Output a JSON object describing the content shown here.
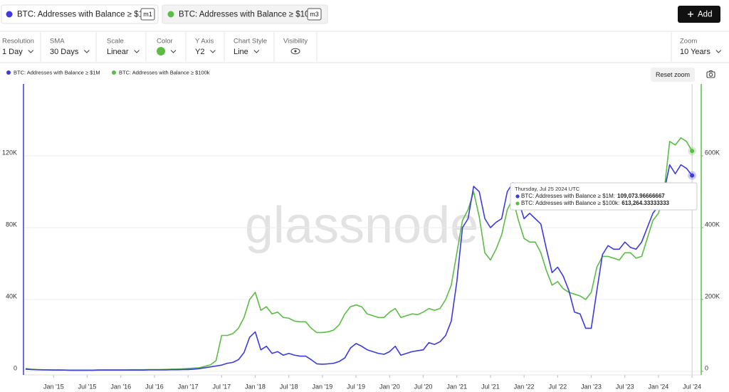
{
  "header": {
    "badges": [
      "m1",
      "m3"
    ],
    "add_button": "Add"
  },
  "toolbar": {
    "items": [
      {
        "label": "Resolution",
        "value": "1 Day"
      },
      {
        "label": "SMA",
        "value": "30 Days"
      },
      {
        "label": "Scale",
        "value": "Linear"
      },
      {
        "label": "Color"
      },
      {
        "label": "Y Axis",
        "value": "Y2"
      },
      {
        "label": "Chart Style",
        "value": "Line"
      },
      {
        "label": "Visibility"
      }
    ],
    "zoom": {
      "label": "Zoom",
      "value": "10 Years"
    }
  },
  "reset_zoom": "Reset zoom",
  "chart_data": {
    "type": "line",
    "watermark": "glassnode",
    "x": [
      "2014-08",
      "2014-09",
      "2014-10",
      "2014-11",
      "2014-12",
      "2015-01",
      "2015-02",
      "2015-03",
      "2015-04",
      "2015-05",
      "2015-06",
      "2015-07",
      "2015-08",
      "2015-09",
      "2015-10",
      "2015-11",
      "2015-12",
      "2016-01",
      "2016-02",
      "2016-03",
      "2016-04",
      "2016-05",
      "2016-06",
      "2016-07",
      "2016-08",
      "2016-09",
      "2016-10",
      "2016-11",
      "2016-12",
      "2017-01",
      "2017-02",
      "2017-03",
      "2017-04",
      "2017-05",
      "2017-06",
      "2017-07",
      "2017-08",
      "2017-09",
      "2017-10",
      "2017-11",
      "2017-12",
      "2018-01",
      "2018-02",
      "2018-03",
      "2018-04",
      "2018-05",
      "2018-06",
      "2018-07",
      "2018-08",
      "2018-09",
      "2018-10",
      "2018-11",
      "2018-12",
      "2019-01",
      "2019-02",
      "2019-03",
      "2019-04",
      "2019-05",
      "2019-06",
      "2019-07",
      "2019-08",
      "2019-09",
      "2019-10",
      "2019-11",
      "2019-12",
      "2020-01",
      "2020-02",
      "2020-03",
      "2020-04",
      "2020-05",
      "2020-06",
      "2020-07",
      "2020-08",
      "2020-09",
      "2020-10",
      "2020-11",
      "2020-12",
      "2021-01",
      "2021-02",
      "2021-03",
      "2021-04",
      "2021-05",
      "2021-06",
      "2021-07",
      "2021-08",
      "2021-09",
      "2021-10",
      "2021-11",
      "2021-12",
      "2022-01",
      "2022-02",
      "2022-03",
      "2022-04",
      "2022-05",
      "2022-06",
      "2022-07",
      "2022-08",
      "2022-09",
      "2022-10",
      "2022-11",
      "2022-12",
      "2023-01",
      "2023-02",
      "2023-03",
      "2023-04",
      "2023-05",
      "2023-06",
      "2023-07",
      "2023-08",
      "2023-09",
      "2023-10",
      "2023-11",
      "2023-12",
      "2024-01",
      "2024-02",
      "2024-03",
      "2024-04",
      "2024-05",
      "2024-06",
      "2024-07"
    ],
    "series": [
      {
        "name": "BTC: Addresses with Balance ≥ $1M",
        "color": "#3b3be0",
        "axis": "y",
        "values": [
          1200,
          1000,
          900,
          800,
          800,
          700,
          700,
          700,
          600,
          600,
          600,
          600,
          600,
          700,
          700,
          700,
          700,
          700,
          700,
          700,
          700,
          700,
          800,
          800,
          800,
          800,
          900,
          900,
          1000,
          1000,
          1200,
          1500,
          2000,
          2500,
          3000,
          3500,
          4500,
          5000,
          6500,
          10500,
          19000,
          22000,
          12000,
          14000,
          10000,
          11000,
          9000,
          10000,
          9000,
          8500,
          8500,
          6500,
          4200,
          4000,
          4200,
          4500,
          5500,
          7500,
          13000,
          15500,
          14000,
          12000,
          11000,
          10000,
          9500,
          11000,
          14000,
          9000,
          10000,
          11000,
          11500,
          12000,
          16000,
          15000,
          16500,
          20000,
          28000,
          50000,
          80000,
          85000,
          103000,
          100000,
          85000,
          80000,
          83000,
          85000,
          100000,
          105000,
          95000,
          85000,
          88000,
          85000,
          82000,
          68000,
          55000,
          58000,
          53000,
          45000,
          33000,
          32000,
          24000,
          24000,
          45000,
          65000,
          70000,
          68000,
          68000,
          72000,
          69000,
          68000,
          72000,
          80000,
          88000,
          92000,
          100000,
          115000,
          110000,
          115000,
          113000,
          109073.96666667
        ]
      },
      {
        "name": "BTC: Addresses with Balance ≥ $100k",
        "color": "#5bbd45",
        "axis": "y2",
        "values": [
          8000,
          6000,
          5000,
          4500,
          4000,
          4000,
          4000,
          3500,
          3500,
          3500,
          3500,
          3500,
          3500,
          4000,
          4000,
          4000,
          4000,
          4000,
          4000,
          4500,
          4500,
          4500,
          5000,
          5000,
          5000,
          5500,
          6000,
          6500,
          7000,
          8000,
          9000,
          10000,
          14000,
          18000,
          30000,
          100000,
          100000,
          105000,
          120000,
          150000,
          200000,
          220000,
          170000,
          180000,
          160000,
          165000,
          150000,
          148000,
          140000,
          138000,
          138000,
          120000,
          108000,
          108000,
          110000,
          115000,
          130000,
          160000,
          180000,
          185000,
          180000,
          160000,
          155000,
          150000,
          150000,
          165000,
          175000,
          150000,
          155000,
          160000,
          158000,
          165000,
          175000,
          170000,
          175000,
          200000,
          240000,
          330000,
          420000,
          450000,
          500000,
          430000,
          330000,
          310000,
          340000,
          380000,
          450000,
          480000,
          420000,
          370000,
          360000,
          360000,
          330000,
          280000,
          240000,
          250000,
          230000,
          220000,
          215000,
          210000,
          200000,
          220000,
          290000,
          320000,
          320000,
          315000,
          310000,
          330000,
          330000,
          315000,
          320000,
          370000,
          420000,
          440000,
          500000,
          640000,
          630000,
          650000,
          640000,
          613264.33333333
        ]
      }
    ],
    "xlim": [
      "2014-08",
      "2024-08"
    ],
    "xticks": [
      {
        "value": "2015-01",
        "label": "Jan '15"
      },
      {
        "value": "2015-07",
        "label": "Jul '15"
      },
      {
        "value": "2016-01",
        "label": "Jan '16"
      },
      {
        "value": "2016-07",
        "label": "Jul '16"
      },
      {
        "value": "2017-01",
        "label": "Jan '17"
      },
      {
        "value": "2017-07",
        "label": "Jul '17"
      },
      {
        "value": "2018-01",
        "label": "Jan '18"
      },
      {
        "value": "2018-07",
        "label": "Jul '18"
      },
      {
        "value": "2019-01",
        "label": "Jan '19"
      },
      {
        "value": "2019-07",
        "label": "Jul '19"
      },
      {
        "value": "2020-01",
        "label": "Jan '20"
      },
      {
        "value": "2020-07",
        "label": "Jul '20"
      },
      {
        "value": "2021-01",
        "label": "Jan '21"
      },
      {
        "value": "2021-07",
        "label": "Jul '21"
      },
      {
        "value": "2022-01",
        "label": "Jan '22"
      },
      {
        "value": "2022-07",
        "label": "Jul '22"
      },
      {
        "value": "2023-01",
        "label": "Jan '23"
      },
      {
        "value": "2023-07",
        "label": "Jul '23"
      },
      {
        "value": "2024-01",
        "label": "Jan '24"
      },
      {
        "value": "2024-07",
        "label": "Jul '24"
      }
    ],
    "ylim": [
      0,
      160000
    ],
    "yticks": [
      0,
      {
        "value": 40000,
        "label": "40K"
      },
      {
        "value": 80000,
        "label": "80K"
      },
      {
        "value": 120000,
        "label": "120K"
      }
    ],
    "y2lim": [
      0,
      800000
    ],
    "y2ticks": [
      0,
      {
        "value": 200000,
        "label": "200K"
      },
      {
        "value": 400000,
        "label": "400K"
      },
      {
        "value": 600000,
        "label": "600K"
      }
    ],
    "grid": true,
    "tooltip": {
      "title": "Thursday, Jul 25 2024 UTC",
      "items": [
        {
          "label": "BTC: Addresses with Balance ≥ $1M:",
          "value": "109,073.96666667"
        },
        {
          "label": "BTC: Addresses with Balance ≥ $100k:",
          "value": "613,264.33333333"
        }
      ]
    }
  }
}
